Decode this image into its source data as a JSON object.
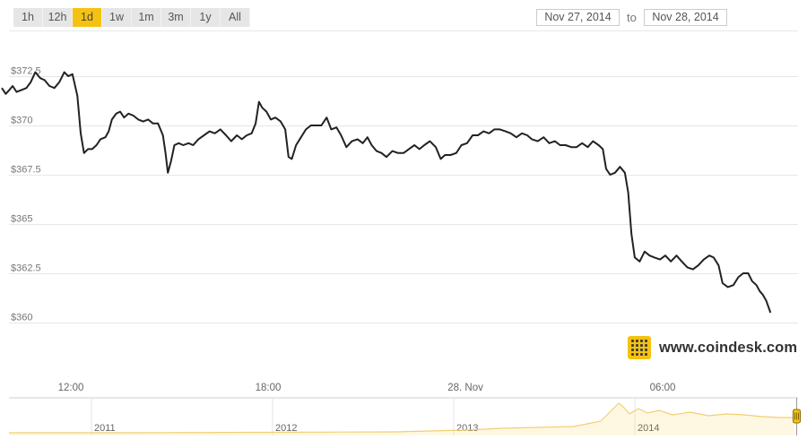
{
  "range_selector": {
    "buttons": [
      {
        "label": "1h",
        "active": false
      },
      {
        "label": "12h",
        "active": false
      },
      {
        "label": "1d",
        "active": true
      },
      {
        "label": "1w",
        "active": false
      },
      {
        "label": "1m",
        "active": false
      },
      {
        "label": "3m",
        "active": false
      },
      {
        "label": "1y",
        "active": false
      },
      {
        "label": "All",
        "active": false
      }
    ]
  },
  "date_range": {
    "from": "Nov 27, 2014",
    "separator": "to",
    "to": "Nov 28, 2014"
  },
  "colors": {
    "accent": "#f5c211",
    "line": "#222222",
    "grid": "#e6e6e6"
  },
  "branding": {
    "site": "www.coindesk.com",
    "icon": "coindesk-logo-icon"
  },
  "chart_data": {
    "type": "line",
    "title": "",
    "xlabel": "",
    "ylabel": "",
    "x_ticks": [
      "12:00",
      "18:00",
      "28. Nov",
      "06:00"
    ],
    "y_ticks": [
      "$360",
      "$362.5",
      "$365",
      "$367.5",
      "$370",
      "$372.5"
    ],
    "y_tick_values": [
      360,
      362.5,
      365,
      367.5,
      370,
      372.5
    ],
    "ylim": [
      360,
      373
    ],
    "x_range_hours": [
      9.9,
      33.9
    ],
    "grid": true,
    "series": [
      {
        "values": [
          [
            9.9,
            371.9
          ],
          [
            10.02,
            371.6
          ],
          [
            10.13,
            371.8
          ],
          [
            10.23,
            372.0
          ],
          [
            10.35,
            371.7
          ],
          [
            10.5,
            371.8
          ],
          [
            10.65,
            371.9
          ],
          [
            10.78,
            372.2
          ],
          [
            10.92,
            372.7
          ],
          [
            11.07,
            372.4
          ],
          [
            11.2,
            372.3
          ],
          [
            11.35,
            372.0
          ],
          [
            11.5,
            371.9
          ],
          [
            11.65,
            372.2
          ],
          [
            11.8,
            372.7
          ],
          [
            11.92,
            372.5
          ],
          [
            12.05,
            372.6
          ],
          [
            12.2,
            371.5
          ],
          [
            12.3,
            369.6
          ],
          [
            12.4,
            368.6
          ],
          [
            12.52,
            368.8
          ],
          [
            12.65,
            368.8
          ],
          [
            12.78,
            369.0
          ],
          [
            12.9,
            369.3
          ],
          [
            13.05,
            369.4
          ],
          [
            13.15,
            369.7
          ],
          [
            13.25,
            370.3
          ],
          [
            13.38,
            370.6
          ],
          [
            13.5,
            370.7
          ],
          [
            13.62,
            370.4
          ],
          [
            13.75,
            370.6
          ],
          [
            13.9,
            370.5
          ],
          [
            14.05,
            370.3
          ],
          [
            14.2,
            370.2
          ],
          [
            14.35,
            370.3
          ],
          [
            14.5,
            370.1
          ],
          [
            14.65,
            370.1
          ],
          [
            14.8,
            369.5
          ],
          [
            14.88,
            368.6
          ],
          [
            14.95,
            367.6
          ],
          [
            15.05,
            368.2
          ],
          [
            15.15,
            369.0
          ],
          [
            15.28,
            369.1
          ],
          [
            15.42,
            369.0
          ],
          [
            15.58,
            369.1
          ],
          [
            15.72,
            369.0
          ],
          [
            15.88,
            369.3
          ],
          [
            16.05,
            369.5
          ],
          [
            16.22,
            369.7
          ],
          [
            16.38,
            369.6
          ],
          [
            16.55,
            369.8
          ],
          [
            16.72,
            369.5
          ],
          [
            16.88,
            369.2
          ],
          [
            17.05,
            369.5
          ],
          [
            17.2,
            369.3
          ],
          [
            17.35,
            369.5
          ],
          [
            17.5,
            369.6
          ],
          [
            17.62,
            370.1
          ],
          [
            17.72,
            371.2
          ],
          [
            17.82,
            370.9
          ],
          [
            17.95,
            370.7
          ],
          [
            18.08,
            370.3
          ],
          [
            18.22,
            370.4
          ],
          [
            18.38,
            370.2
          ],
          [
            18.52,
            369.8
          ],
          [
            18.62,
            368.4
          ],
          [
            18.72,
            368.3
          ],
          [
            18.85,
            369.0
          ],
          [
            19.0,
            369.4
          ],
          [
            19.15,
            369.8
          ],
          [
            19.3,
            370.0
          ],
          [
            19.45,
            370.0
          ],
          [
            19.62,
            370.0
          ],
          [
            19.78,
            370.4
          ],
          [
            19.92,
            369.8
          ],
          [
            20.08,
            369.9
          ],
          [
            20.22,
            369.5
          ],
          [
            20.38,
            368.9
          ],
          [
            20.55,
            369.2
          ],
          [
            20.72,
            369.3
          ],
          [
            20.88,
            369.1
          ],
          [
            21.02,
            369.4
          ],
          [
            21.15,
            369.0
          ],
          [
            21.3,
            368.7
          ],
          [
            21.45,
            368.6
          ],
          [
            21.6,
            368.4
          ],
          [
            21.78,
            368.7
          ],
          [
            21.95,
            368.6
          ],
          [
            22.12,
            368.6
          ],
          [
            22.28,
            368.8
          ],
          [
            22.45,
            369.0
          ],
          [
            22.6,
            368.8
          ],
          [
            22.75,
            369.0
          ],
          [
            22.92,
            369.2
          ],
          [
            23.1,
            368.9
          ],
          [
            23.25,
            368.3
          ],
          [
            23.38,
            368.5
          ],
          [
            23.55,
            368.5
          ],
          [
            23.72,
            368.6
          ],
          [
            23.88,
            369.0
          ],
          [
            24.05,
            369.1
          ],
          [
            24.22,
            369.5
          ],
          [
            24.38,
            369.5
          ],
          [
            24.55,
            369.7
          ],
          [
            24.72,
            369.6
          ],
          [
            24.88,
            369.8
          ],
          [
            25.05,
            369.8
          ],
          [
            25.22,
            369.7
          ],
          [
            25.38,
            369.6
          ],
          [
            25.55,
            369.4
          ],
          [
            25.72,
            369.6
          ],
          [
            25.88,
            369.5
          ],
          [
            26.02,
            369.3
          ],
          [
            26.2,
            369.2
          ],
          [
            26.38,
            369.4
          ],
          [
            26.55,
            369.1
          ],
          [
            26.72,
            369.2
          ],
          [
            26.88,
            369.0
          ],
          [
            27.05,
            369.0
          ],
          [
            27.22,
            368.9
          ],
          [
            27.38,
            368.9
          ],
          [
            27.55,
            369.1
          ],
          [
            27.72,
            368.9
          ],
          [
            27.88,
            369.2
          ],
          [
            28.05,
            369.0
          ],
          [
            28.18,
            368.8
          ],
          [
            28.28,
            367.8
          ],
          [
            28.4,
            367.5
          ],
          [
            28.55,
            367.6
          ],
          [
            28.7,
            367.9
          ],
          [
            28.85,
            367.6
          ],
          [
            28.95,
            366.6
          ],
          [
            29.05,
            364.5
          ],
          [
            29.15,
            363.3
          ],
          [
            29.3,
            363.1
          ],
          [
            29.45,
            363.6
          ],
          [
            29.6,
            363.4
          ],
          [
            29.75,
            363.3
          ],
          [
            29.92,
            363.2
          ],
          [
            30.08,
            363.4
          ],
          [
            30.25,
            363.1
          ],
          [
            30.42,
            363.4
          ],
          [
            30.58,
            363.1
          ],
          [
            30.75,
            362.8
          ],
          [
            30.92,
            362.7
          ],
          [
            31.08,
            362.9
          ],
          [
            31.25,
            363.2
          ],
          [
            31.42,
            363.4
          ],
          [
            31.55,
            363.3
          ],
          [
            31.7,
            362.9
          ],
          [
            31.82,
            362.0
          ],
          [
            31.98,
            361.8
          ],
          [
            32.15,
            361.9
          ],
          [
            32.3,
            362.3
          ],
          [
            32.45,
            362.5
          ],
          [
            32.6,
            362.5
          ],
          [
            32.72,
            362.1
          ],
          [
            32.85,
            361.9
          ],
          [
            32.95,
            361.6
          ],
          [
            33.05,
            361.4
          ],
          [
            33.15,
            361.1
          ],
          [
            33.28,
            360.5
          ]
        ]
      }
    ]
  },
  "navigator": {
    "years": [
      "2011",
      "2012",
      "2013",
      "2014"
    ]
  }
}
